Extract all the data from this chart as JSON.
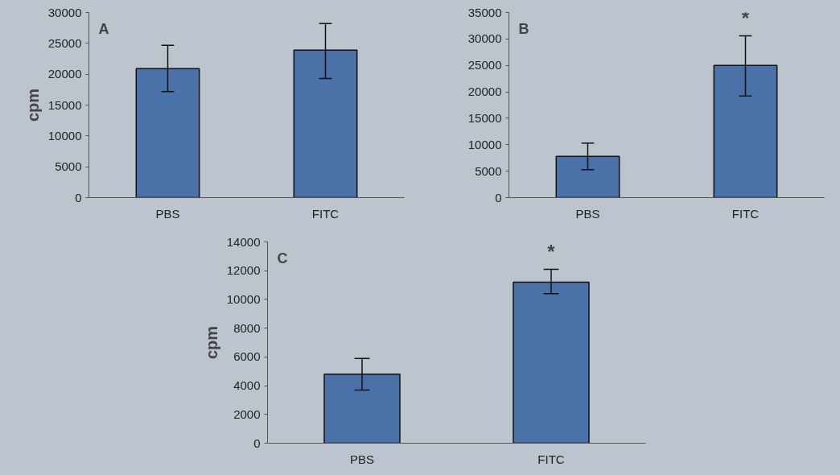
{
  "chart_data": [
    {
      "type": "bar",
      "title": "A",
      "ylabel": "cpm",
      "categories": [
        "PBS",
        "FITC"
      ],
      "values": [
        20900,
        23900
      ],
      "errors": [
        [
          17200,
          24700
        ],
        [
          19300,
          28200
        ]
      ],
      "color": "#4a72a8",
      "ylim": [
        0,
        30000
      ],
      "yticks": [
        0,
        5000,
        10000,
        15000,
        20000,
        25000,
        30000
      ],
      "grid": false
    },
    {
      "type": "bar",
      "title": "B",
      "categories": [
        "PBS",
        "FITC"
      ],
      "values": [
        7800,
        25000
      ],
      "errors": [
        [
          5300,
          10300
        ],
        [
          19200,
          30600
        ]
      ],
      "color": "#4a72a8",
      "ylim": [
        0,
        35000
      ],
      "yticks": [
        0,
        5000,
        10000,
        15000,
        20000,
        25000,
        30000,
        35000
      ],
      "grid": false,
      "annotations": [
        "*"
      ]
    },
    {
      "type": "bar",
      "title": "C",
      "ylabel": "cpm",
      "categories": [
        "PBS",
        "FITC"
      ],
      "values": [
        4800,
        11200
      ],
      "errors": [
        [
          3700,
          5900
        ],
        [
          10400,
          12100
        ]
      ],
      "color": "#4a72a8",
      "ylim": [
        0,
        14000
      ],
      "yticks": [
        0,
        2000,
        4000,
        6000,
        8000,
        10000,
        12000,
        14000
      ],
      "grid": false,
      "annotations": [
        "*"
      ]
    }
  ]
}
